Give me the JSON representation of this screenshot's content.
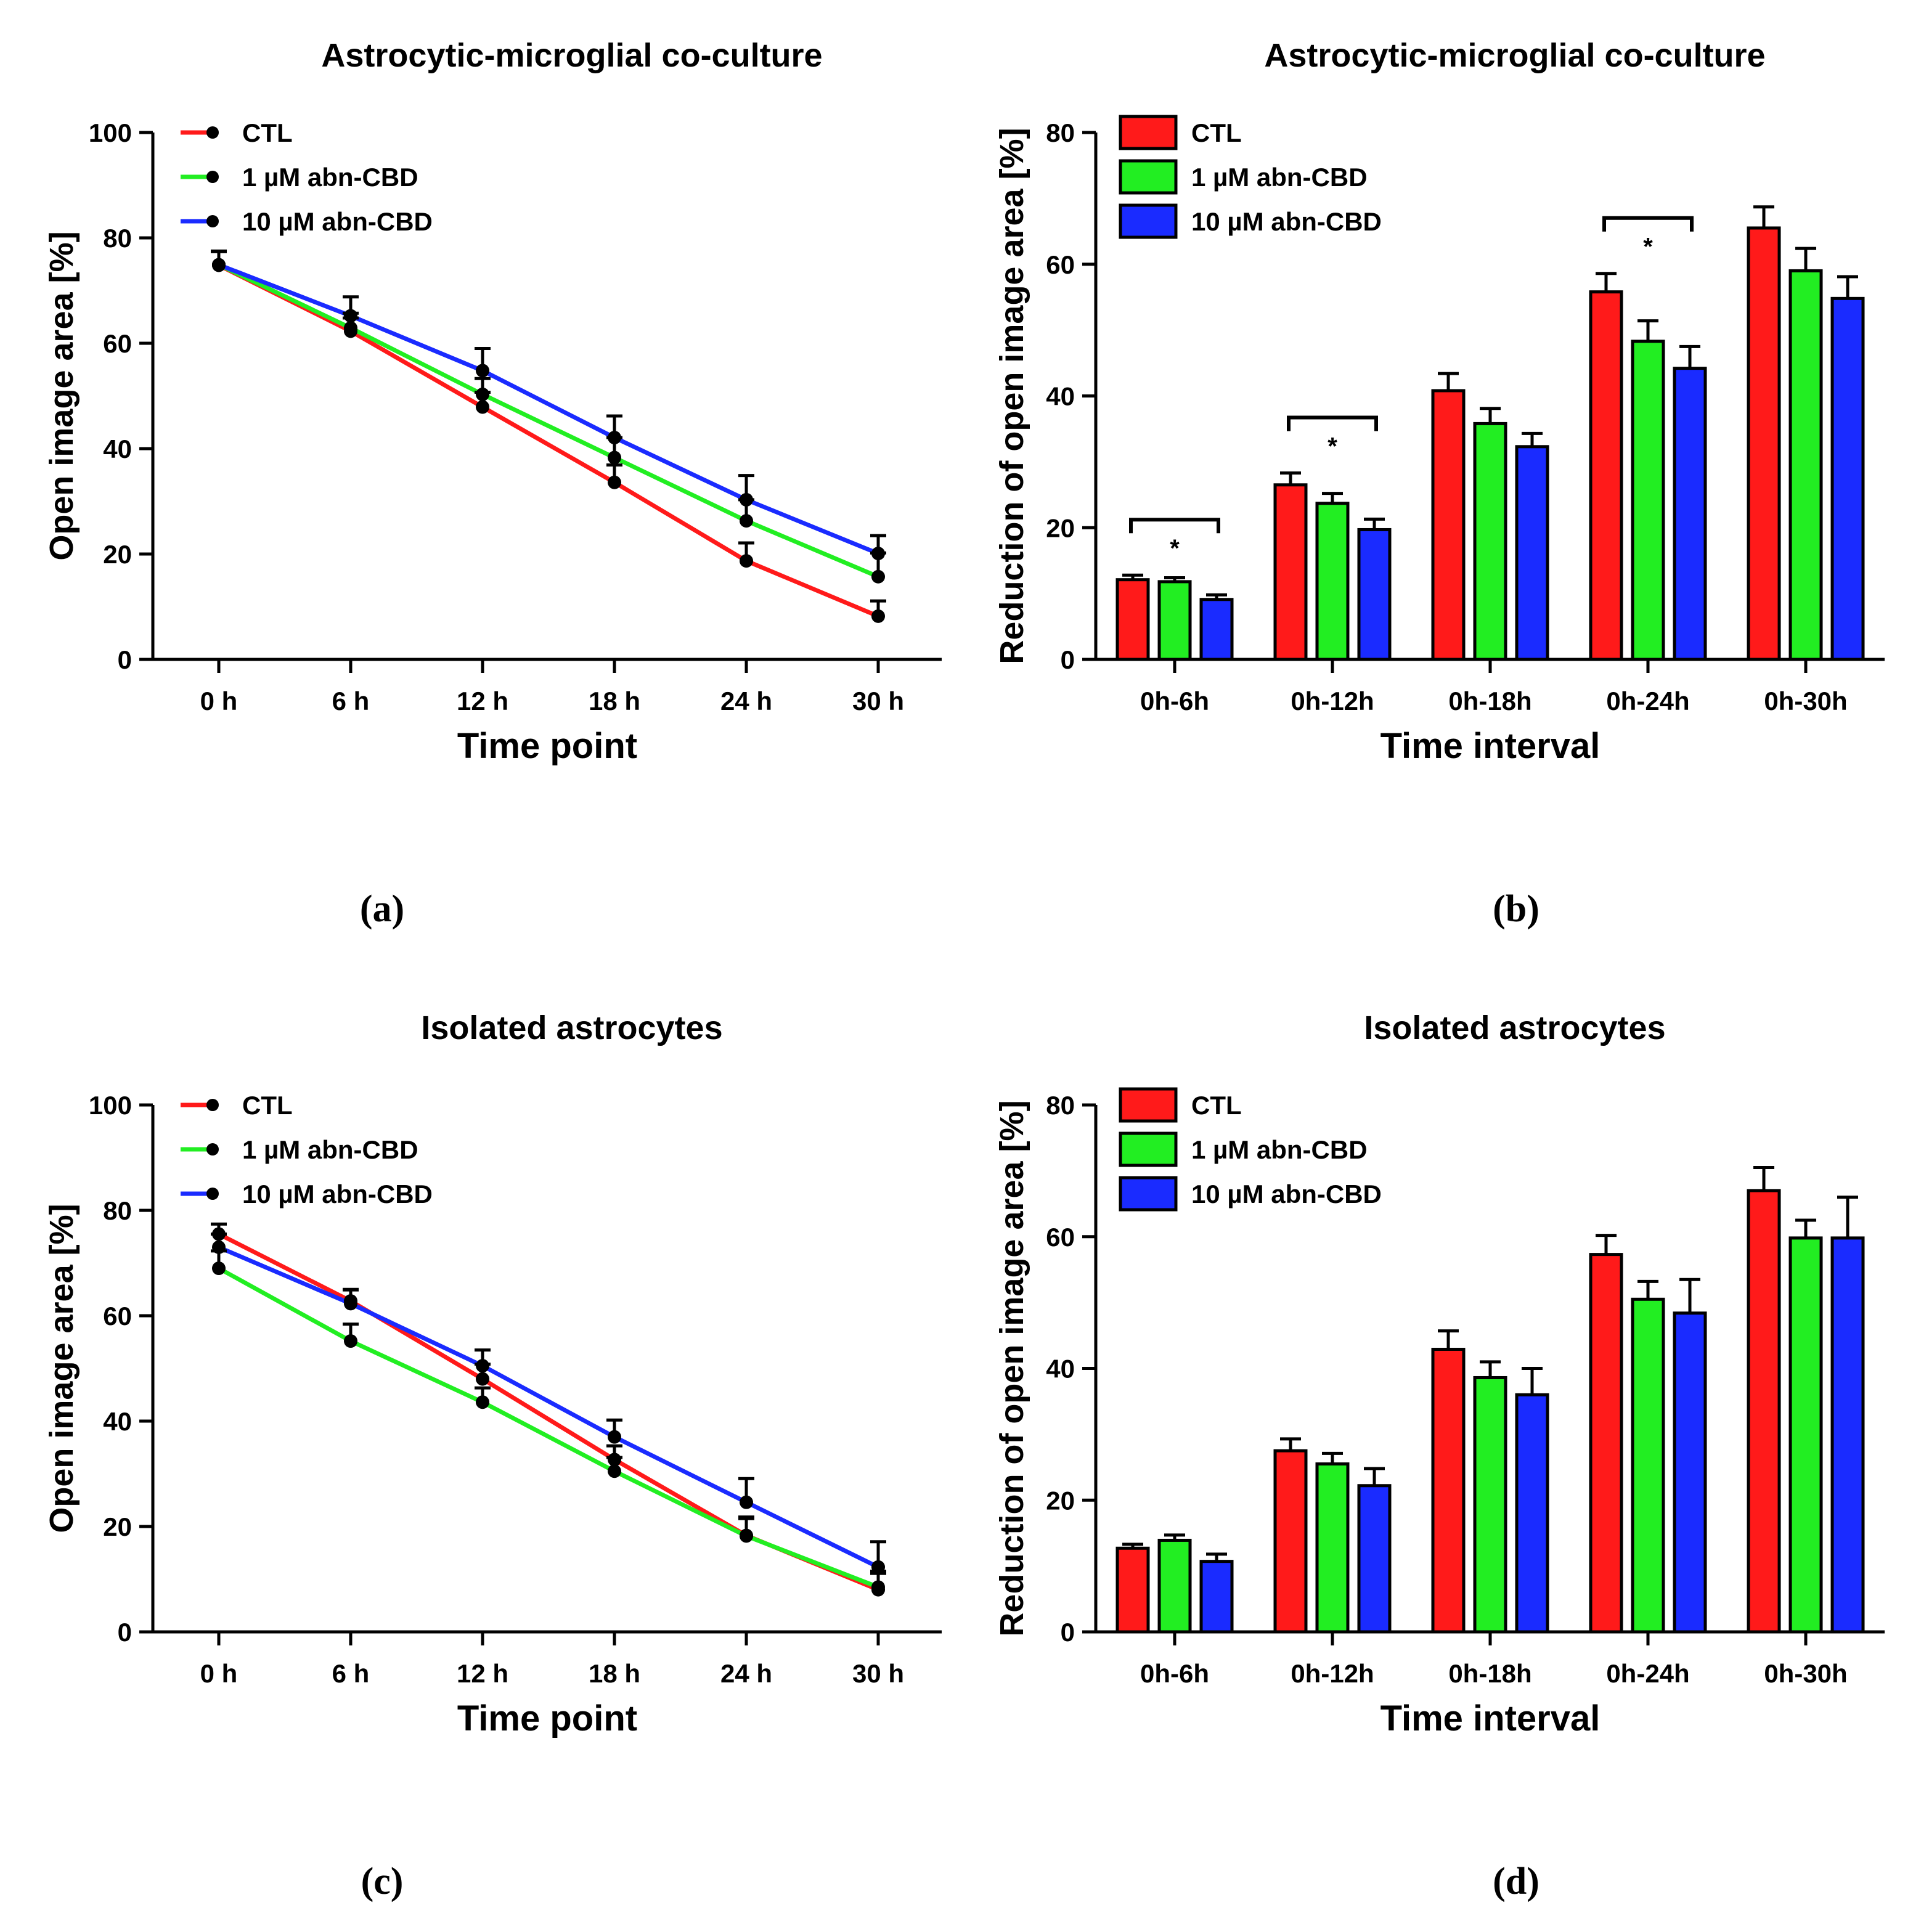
{
  "colors": {
    "CTL": "#ff1a1a",
    "1uM": "#22ee22",
    "10uM": "#1a2bff",
    "axis": "#000000"
  },
  "panel_labels": [
    "(a)",
    "(b)",
    "(c)",
    "(d)"
  ],
  "chart_data": [
    {
      "type": "line",
      "title": "Astrocytic-microglial co-culture",
      "xlabel": "Time point",
      "ylabel": "Open image area [%]",
      "categories": [
        "0 h",
        "6 h",
        "12 h",
        "18 h",
        "24 h",
        "30 h"
      ],
      "ylim": [
        0,
        100
      ],
      "yticks": [
        "0",
        "20",
        "40",
        "60",
        "80",
        "100"
      ],
      "legend": "top-left",
      "series": [
        {
          "name": "CTL",
          "values": [
            74.8,
            62.3,
            47.9,
            33.6,
            18.7,
            8.2
          ],
          "errors": [
            2.7,
            2.5,
            2.8,
            3.3,
            3.4,
            2.9
          ]
        },
        {
          "name": "1 µM abn-CBD",
          "values": [
            74.9,
            62.9,
            50.3,
            38.3,
            26.3,
            15.7
          ],
          "errors": [
            2.5,
            2.8,
            3.0,
            3.8,
            4.0,
            4.5
          ]
        },
        {
          "name": "10 µM abn-CBD",
          "values": [
            74.9,
            65.2,
            54.8,
            42.1,
            30.3,
            20.1
          ],
          "errors": [
            2.5,
            3.6,
            4.2,
            4.1,
            4.6,
            3.4
          ]
        }
      ]
    },
    {
      "type": "bar",
      "title": "Astrocytic-microglial co-culture",
      "xlabel": "Time interval",
      "ylabel": "Reduction of open image area [%]",
      "categories": [
        "0h-6h",
        "0h-12h",
        "0h-18h",
        "0h-24h",
        "0h-30h"
      ],
      "ylim": [
        0,
        80
      ],
      "yticks": [
        "0",
        "20",
        "40",
        "60",
        "80"
      ],
      "legend": "top-left",
      "series": [
        {
          "name": "CTL",
          "values": [
            12.1,
            26.5,
            40.8,
            55.8,
            65.5
          ],
          "errors": [
            0.7,
            1.8,
            2.6,
            2.8,
            3.2
          ]
        },
        {
          "name": "1 µM abn-CBD",
          "values": [
            11.8,
            23.7,
            35.8,
            48.3,
            59.0
          ],
          "errors": [
            0.6,
            1.5,
            2.3,
            3.1,
            3.4
          ]
        },
        {
          "name": "10 µM abn-CBD",
          "values": [
            9.1,
            19.7,
            32.3,
            44.2,
            54.8
          ],
          "errors": [
            0.7,
            1.6,
            2.0,
            3.3,
            3.3
          ]
        }
      ],
      "significance": [
        {
          "category_index": 0,
          "marker": "*"
        },
        {
          "category_index": 1,
          "marker": "*"
        },
        {
          "category_index": 3,
          "marker": "*"
        }
      ]
    },
    {
      "type": "line",
      "title": "Isolated astrocytes",
      "xlabel": "Time point",
      "ylabel": "Open image area [%]",
      "categories": [
        "0 h",
        "6 h",
        "12 h",
        "18 h",
        "24 h",
        "30 h"
      ],
      "ylim": [
        0,
        100
      ],
      "yticks": [
        "0",
        "20",
        "40",
        "60",
        "80",
        "100"
      ],
      "legend": "top-left",
      "series": [
        {
          "name": "CTL",
          "values": [
            75.5,
            62.8,
            48.0,
            32.7,
            18.3,
            8.0
          ],
          "errors": [
            1.9,
            2.2,
            2.8,
            2.6,
            3.5,
            3.1
          ]
        },
        {
          "name": "1 µM abn-CBD",
          "values": [
            69.0,
            55.2,
            43.6,
            30.5,
            18.2,
            8.5
          ],
          "errors": [
            3.3,
            3.2,
            2.7,
            2.6,
            3.3,
            3.0
          ]
        },
        {
          "name": "10 µM abn-CBD",
          "values": [
            73.0,
            62.3,
            50.5,
            37.0,
            24.6,
            12.3
          ],
          "errors": [
            2.5,
            2.6,
            3.0,
            3.2,
            4.5,
            4.8
          ]
        }
      ]
    },
    {
      "type": "bar",
      "title": "Isolated astrocytes",
      "xlabel": "Time interval",
      "ylabel": "Reduction of open image area [%]",
      "categories": [
        "0h-6h",
        "0h-12h",
        "0h-18h",
        "0h-24h",
        "0h-30h"
      ],
      "ylim": [
        0,
        80
      ],
      "yticks": [
        "0",
        "20",
        "40",
        "60",
        "80"
      ],
      "legend": "top-left",
      "series": [
        {
          "name": "CTL",
          "values": [
            12.7,
            27.5,
            42.9,
            57.3,
            67.0
          ],
          "errors": [
            0.6,
            1.8,
            2.8,
            2.9,
            3.5
          ]
        },
        {
          "name": "1 µM abn-CBD",
          "values": [
            13.9,
            25.5,
            38.6,
            50.5,
            59.8
          ],
          "errors": [
            0.8,
            1.6,
            2.4,
            2.7,
            2.7
          ]
        },
        {
          "name": "10 µM abn-CBD",
          "values": [
            10.7,
            22.2,
            36.0,
            48.4,
            59.8
          ],
          "errors": [
            1.1,
            2.6,
            4.0,
            5.1,
            6.2
          ]
        }
      ],
      "significance": []
    }
  ]
}
